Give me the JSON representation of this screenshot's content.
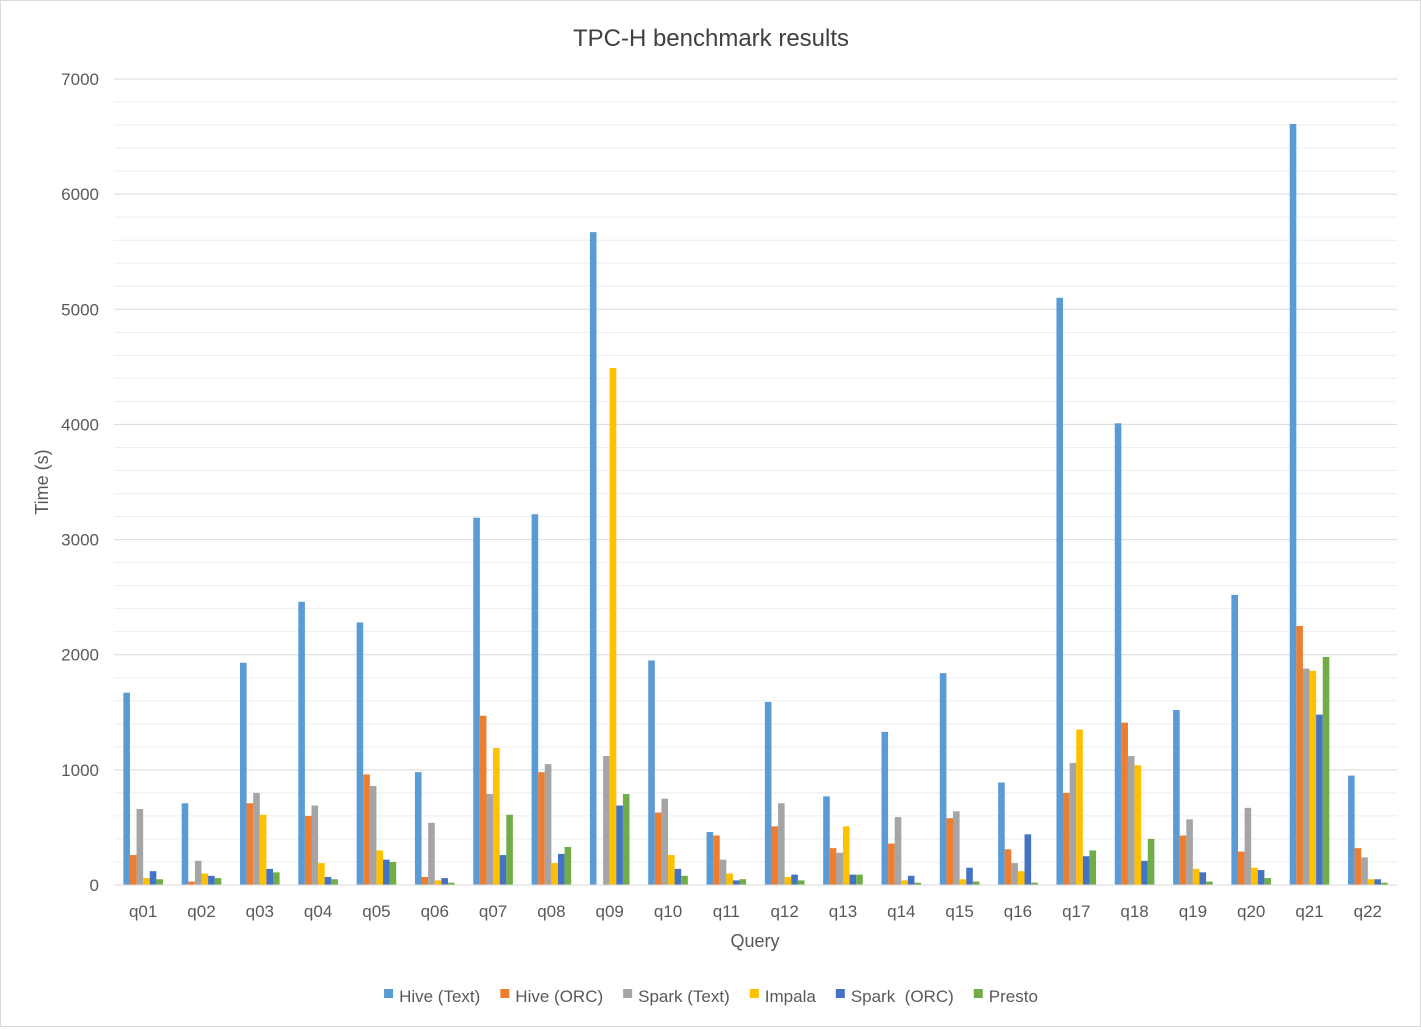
{
  "chart_data": {
    "type": "bar",
    "title": "TPC-H benchmark results",
    "xlabel": "Query",
    "ylabel": "Time (s)",
    "ylim": [
      0,
      7000
    ],
    "major_ticks": [
      0,
      1000,
      2000,
      3000,
      4000,
      5000,
      6000,
      7000
    ],
    "minor_tick_step": 200,
    "grid": true,
    "legend_position": "bottom",
    "categories": [
      "q01",
      "q02",
      "q03",
      "q04",
      "q05",
      "q06",
      "q07",
      "q08",
      "q09",
      "q10",
      "q11",
      "q12",
      "q13",
      "q14",
      "q15",
      "q16",
      "q17",
      "q18",
      "q19",
      "q20",
      "q21",
      "q22"
    ],
    "series": [
      {
        "name": "Hive (Text)",
        "color": "#5B9BD5",
        "values": [
          1670,
          710,
          1930,
          2460,
          2280,
          980,
          3190,
          3220,
          5670,
          1950,
          460,
          1590,
          770,
          1330,
          1840,
          890,
          5100,
          4010,
          1520,
          2520,
          6610,
          950
        ]
      },
      {
        "name": "Hive (ORC)",
        "color": "#ED7D31",
        "values": [
          260,
          30,
          710,
          600,
          960,
          70,
          1470,
          980,
          0,
          630,
          430,
          510,
          320,
          360,
          580,
          310,
          800,
          1410,
          430,
          290,
          2250,
          320
        ]
      },
      {
        "name": "Spark (Text)",
        "color": "#A5A5A5",
        "values": [
          660,
          210,
          800,
          690,
          860,
          540,
          790,
          1050,
          1120,
          750,
          220,
          710,
          280,
          590,
          640,
          190,
          1060,
          1120,
          570,
          670,
          1880,
          240
        ]
      },
      {
        "name": "Impala",
        "color": "#FFC000",
        "values": [
          60,
          100,
          610,
          190,
          300,
          40,
          1190,
          190,
          4490,
          260,
          100,
          70,
          510,
          40,
          50,
          120,
          1350,
          1040,
          140,
          150,
          1860,
          50
        ]
      },
      {
        "name": "Spark  (ORC)",
        "color": "#4472C4",
        "values": [
          120,
          80,
          140,
          70,
          220,
          60,
          260,
          270,
          690,
          140,
          40,
          90,
          90,
          80,
          150,
          440,
          250,
          210,
          110,
          130,
          1480,
          50
        ]
      },
      {
        "name": "Presto",
        "color": "#70AD47",
        "values": [
          50,
          60,
          110,
          50,
          200,
          20,
          610,
          330,
          790,
          80,
          50,
          40,
          90,
          20,
          30,
          20,
          300,
          400,
          30,
          60,
          1980,
          20
        ]
      }
    ]
  }
}
